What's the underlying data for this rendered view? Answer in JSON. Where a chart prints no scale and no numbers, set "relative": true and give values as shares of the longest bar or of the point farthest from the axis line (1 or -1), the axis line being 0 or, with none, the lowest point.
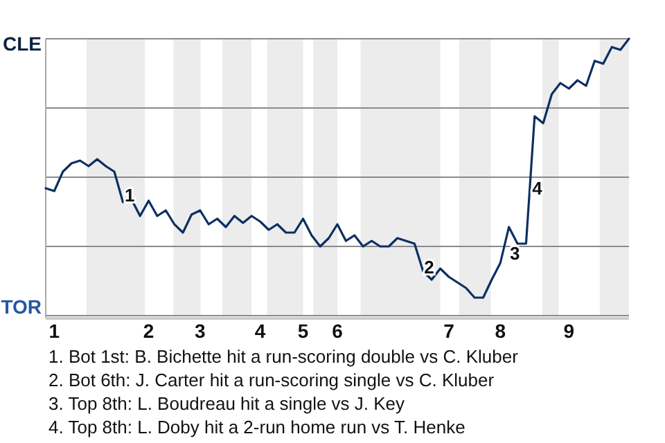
{
  "chart_data": {
    "type": "line",
    "relative": true,
    "categories": [
      null,
      "1",
      null,
      null,
      null,
      null,
      null,
      null,
      null,
      null,
      null,
      null,
      "2",
      null,
      null,
      null,
      null,
      null,
      "3",
      null,
      null,
      null,
      null,
      null,
      null,
      "4",
      null,
      null,
      null,
      null,
      "5",
      null,
      null,
      null,
      "6",
      null,
      null,
      null,
      null,
      null,
      null,
      null,
      null,
      null,
      null,
      null,
      null,
      "7",
      null,
      null,
      null,
      null,
      null,
      "8",
      null,
      null,
      null,
      null,
      null,
      null,
      null,
      "9",
      null,
      null,
      null,
      null,
      null,
      null,
      null
    ],
    "grid": "y",
    "marker": "none",
    "line_style": "solid",
    "series": [
      {
        "color": "#0c2f62",
        "values": [
          0.46,
          0.45,
          0.52,
          0.55,
          0.56,
          0.54,
          0.565,
          0.54,
          0.52,
          0.41,
          0.42,
          0.36,
          0.415,
          0.36,
          0.38,
          0.33,
          0.3,
          0.365,
          0.38,
          0.33,
          0.35,
          0.32,
          0.36,
          0.335,
          0.36,
          0.34,
          0.31,
          0.33,
          0.3,
          0.3,
          0.35,
          0.29,
          0.25,
          0.28,
          0.33,
          0.27,
          0.29,
          0.25,
          0.27,
          0.25,
          0.25,
          0.28,
          0.27,
          0.26,
          0.16,
          0.13,
          0.17,
          0.14,
          0.12,
          0.1,
          0.065,
          0.065,
          0.13,
          0.19,
          0.32,
          0.26,
          0.26,
          0.72,
          0.695,
          0.8,
          0.84,
          0.82,
          0.85,
          0.83,
          0.92,
          0.91,
          0.97,
          0.96,
          1
        ]
      }
    ],
    "annotations": [
      "CLE",
      "TOR",
      "1",
      "2",
      "3",
      "4",
      "1. Bot 1st: B. Bichette hit a run-scoring double vs C. Kluber",
      "2. Bot 6th: J. Carter hit a run-scoring single vs C. Kluber",
      "3. Top 8th: L. Boudreau hit a single vs J. Key",
      "4. Top 8th: L. Doby hit a 2-run home run vs T. Henke"
    ]
  }
}
